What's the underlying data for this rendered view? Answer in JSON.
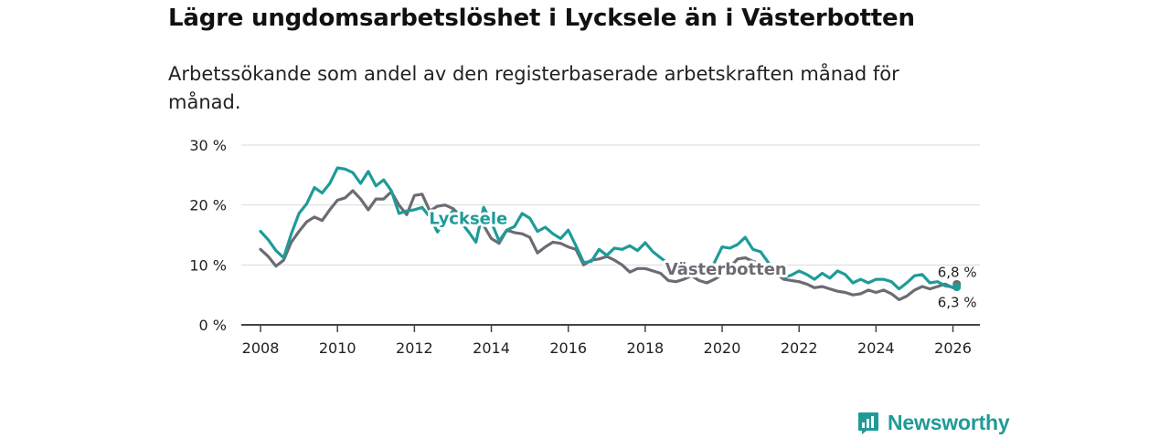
{
  "title": "Lägre ungdomsarbetslöshet i Lycksele än i Västerbotten",
  "subtitle": "Arbetssökande som andel av den registerbaserade arbetskraften månad för månad.",
  "brand": {
    "name": "Newsworthy",
    "icon": "newsworthy-logo-icon",
    "color": "#1e9b98"
  },
  "chart_data": {
    "type": "line",
    "title": "Lägre ungdomsarbetslöshet i Lycksele än i Västerbotten",
    "xlabel": "",
    "ylabel": "",
    "xlim": [
      2007.5,
      2026.7
    ],
    "ylim": [
      0,
      30
    ],
    "grid": true,
    "y_ticks": [
      0,
      10,
      20,
      30
    ],
    "y_tick_labels": [
      "0 %",
      "10 %",
      "20 %",
      "30 %"
    ],
    "x_ticks": [
      2008,
      2010,
      2012,
      2014,
      2016,
      2018,
      2020,
      2022,
      2024,
      2026
    ],
    "x_tick_labels": [
      "2008",
      "2010",
      "2012",
      "2014",
      "2016",
      "2018",
      "2020",
      "2022",
      "2024",
      "2026"
    ],
    "series": [
      {
        "name": "Lycksele",
        "label": "Lycksele",
        "color": "#1e9b98",
        "end_label": "6,3 %",
        "x": [
          2008.0,
          2008.2,
          2008.4,
          2008.6,
          2008.8,
          2009.0,
          2009.2,
          2009.4,
          2009.6,
          2009.8,
          2010.0,
          2010.2,
          2010.4,
          2010.6,
          2010.8,
          2011.0,
          2011.2,
          2011.4,
          2011.6,
          2011.8,
          2012.0,
          2012.2,
          2012.4,
          2012.6,
          2012.8,
          2013.0,
          2013.2,
          2013.4,
          2013.6,
          2013.8,
          2014.0,
          2014.2,
          2014.4,
          2014.6,
          2014.8,
          2015.0,
          2015.2,
          2015.4,
          2015.6,
          2015.8,
          2016.0,
          2016.2,
          2016.4,
          2016.6,
          2016.8,
          2017.0,
          2017.2,
          2017.4,
          2017.6,
          2017.8,
          2018.0,
          2018.2,
          2018.4,
          2018.6,
          2018.8,
          2019.0,
          2019.2,
          2019.4,
          2019.6,
          2019.8,
          2020.0,
          2020.2,
          2020.4,
          2020.6,
          2020.8,
          2021.0,
          2021.2,
          2021.4,
          2021.6,
          2021.8,
          2022.0,
          2022.2,
          2022.4,
          2022.6,
          2022.8,
          2023.0,
          2023.2,
          2023.4,
          2023.6,
          2023.8,
          2024.0,
          2024.2,
          2024.4,
          2024.6,
          2024.8,
          2025.0,
          2025.2,
          2025.4,
          2025.6,
          2025.8,
          2026.0,
          2026.1
        ],
        "values": [
          15.6,
          14.2,
          12.4,
          11.2,
          15.2,
          18.6,
          20.2,
          22.9,
          22.0,
          23.6,
          26.2,
          26.0,
          25.4,
          23.6,
          25.6,
          23.2,
          24.2,
          22.4,
          18.6,
          19.0,
          19.2,
          19.6,
          18.0,
          15.5,
          17.5,
          19.0,
          17.2,
          15.6,
          13.8,
          19.6,
          17.2,
          14.0,
          15.8,
          16.4,
          18.6,
          17.8,
          15.6,
          16.3,
          15.2,
          14.4,
          15.8,
          13.2,
          10.4,
          10.6,
          12.6,
          11.6,
          12.8,
          12.6,
          13.2,
          12.4,
          13.7,
          12.2,
          11.2,
          10.2,
          8.6,
          8.2,
          8.2,
          8.4,
          8.4,
          10.4,
          13.0,
          12.8,
          13.4,
          14.6,
          12.6,
          12.2,
          10.4,
          8.8,
          7.9,
          8.3,
          9.0,
          8.4,
          7.6,
          8.6,
          7.8,
          9.0,
          8.4,
          7.0,
          7.6,
          7.0,
          7.6,
          7.6,
          7.2,
          6.0,
          7.0,
          8.2,
          8.4,
          7.0,
          7.2,
          6.5,
          6.3,
          6.3
        ]
      },
      {
        "name": "Västerbotten",
        "label": "Västerbotten",
        "color": "#6e6a73",
        "end_label": "6,8 %",
        "x": [
          2008.0,
          2008.2,
          2008.4,
          2008.6,
          2008.8,
          2009.0,
          2009.2,
          2009.4,
          2009.6,
          2009.8,
          2010.0,
          2010.2,
          2010.4,
          2010.6,
          2010.8,
          2011.0,
          2011.2,
          2011.4,
          2011.6,
          2011.8,
          2012.0,
          2012.2,
          2012.4,
          2012.6,
          2012.8,
          2013.0,
          2013.2,
          2013.4,
          2013.6,
          2013.8,
          2014.0,
          2014.2,
          2014.4,
          2014.6,
          2014.8,
          2015.0,
          2015.2,
          2015.4,
          2015.6,
          2015.8,
          2016.0,
          2016.2,
          2016.4,
          2016.6,
          2016.8,
          2017.0,
          2017.2,
          2017.4,
          2017.6,
          2017.8,
          2018.0,
          2018.2,
          2018.4,
          2018.6,
          2018.8,
          2019.0,
          2019.2,
          2019.4,
          2019.6,
          2019.8,
          2020.0,
          2020.2,
          2020.4,
          2020.6,
          2020.8,
          2021.0,
          2021.2,
          2021.4,
          2021.6,
          2021.8,
          2022.0,
          2022.2,
          2022.4,
          2022.6,
          2022.8,
          2023.0,
          2023.2,
          2023.4,
          2023.6,
          2023.8,
          2024.0,
          2024.2,
          2024.4,
          2024.6,
          2024.8,
          2025.0,
          2025.2,
          2025.4,
          2025.6,
          2025.8,
          2026.0,
          2026.1
        ],
        "values": [
          12.6,
          11.4,
          9.8,
          10.8,
          13.8,
          15.6,
          17.2,
          18.0,
          17.4,
          19.2,
          20.8,
          21.2,
          22.4,
          21.0,
          19.2,
          21.0,
          21.0,
          22.2,
          20.0,
          18.4,
          21.6,
          21.8,
          19.0,
          19.8,
          20.0,
          19.4,
          18.2,
          17.6,
          17.0,
          16.6,
          14.4,
          13.6,
          15.8,
          15.4,
          15.2,
          14.6,
          12.0,
          13.0,
          13.8,
          13.6,
          13.0,
          12.6,
          10.0,
          10.8,
          11.0,
          11.4,
          10.8,
          10.0,
          8.8,
          9.4,
          9.4,
          9.0,
          8.6,
          7.4,
          7.2,
          7.6,
          8.2,
          7.4,
          7.0,
          7.6,
          8.4,
          9.6,
          11.0,
          11.2,
          10.6,
          10.2,
          9.2,
          8.6,
          7.6,
          7.4,
          7.2,
          6.8,
          6.2,
          6.4,
          6.0,
          5.6,
          5.4,
          5.0,
          5.2,
          5.8,
          5.4,
          5.8,
          5.2,
          4.2,
          4.8,
          5.8,
          6.4,
          6.0,
          6.4,
          6.8,
          6.2,
          6.8
        ]
      }
    ]
  }
}
